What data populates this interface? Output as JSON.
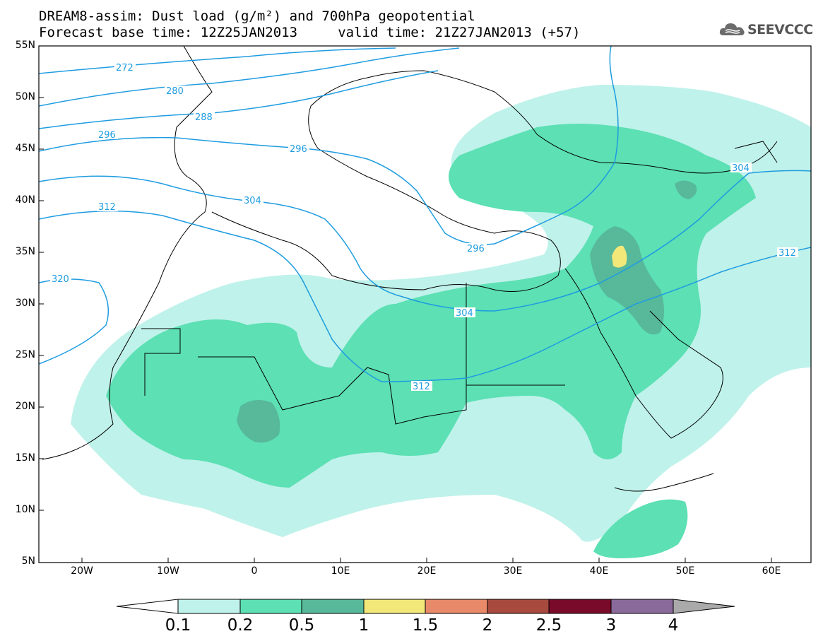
{
  "header": {
    "line1": "DREAM8-assim: Dust load (g/m²) and 700hPa geopotential",
    "line2": "Forecast base time: 12Z25JAN2013     valid time: 21Z27JAN2013 (+57)",
    "logo_text": "SEEVCCC",
    "logo_icon": "cloud-icon"
  },
  "axes": {
    "lat_labels": [
      "55N",
      "50N",
      "45N",
      "40N",
      "35N",
      "30N",
      "25N",
      "20N",
      "15N",
      "10N",
      "5N"
    ],
    "lon_labels": [
      "20W",
      "10W",
      "0",
      "10E",
      "20E",
      "30E",
      "40E",
      "50E",
      "60E"
    ]
  },
  "contours": {
    "color": "#1f9ce0",
    "labels": [
      "272",
      "280",
      "288",
      "296",
      "296",
      "304",
      "304",
      "304",
      "312",
      "312",
      "312",
      "320",
      "296"
    ]
  },
  "colorbar": {
    "labels": [
      "0.1",
      "0.2",
      "0.5",
      "1",
      "1.5",
      "2",
      "2.5",
      "3",
      "4"
    ],
    "colors": [
      "#ffffff",
      "#bff2ea",
      "#5ce0b4",
      "#57b89a",
      "#f2e87a",
      "#e8896a",
      "#a84a3e",
      "#7a0a2a",
      "#8a6a9a",
      "#aaaaaa"
    ]
  },
  "dust_colors": {
    "level1": "#bff2ea",
    "level2": "#5ce0b4",
    "level3": "#57b89a",
    "level4": "#f2e87a"
  }
}
